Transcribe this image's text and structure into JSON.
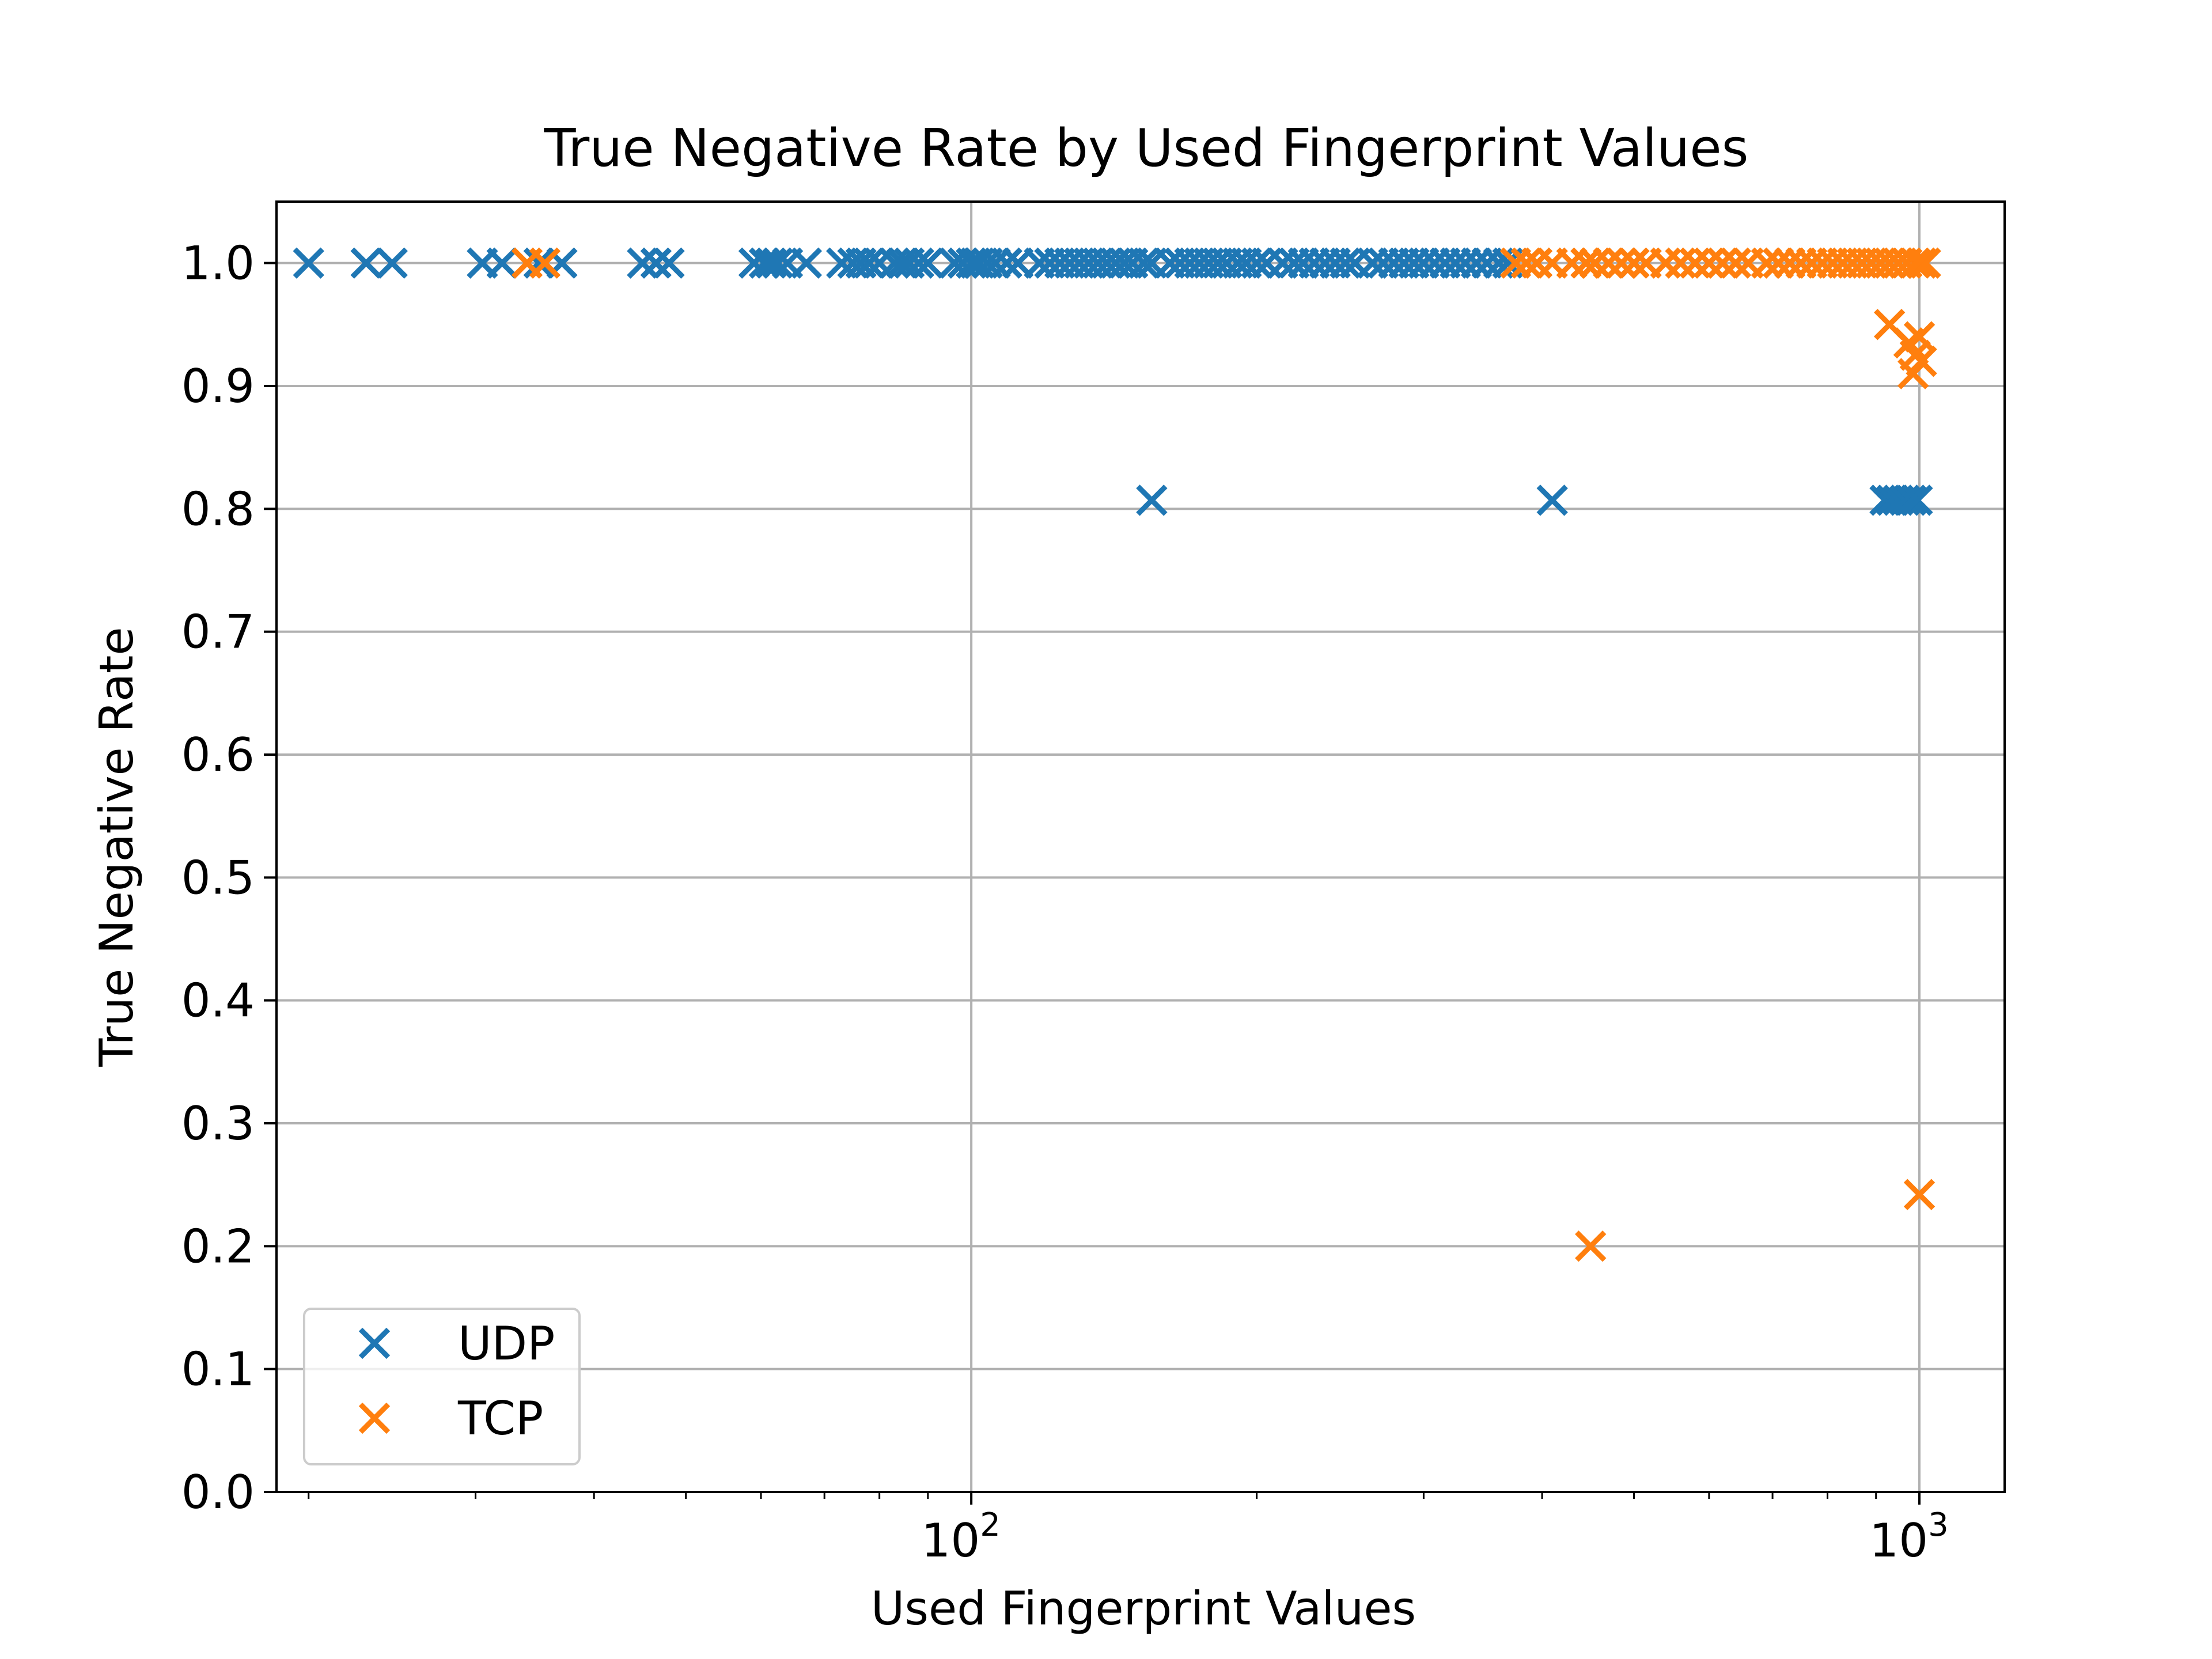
{
  "chart_data": {
    "type": "scatter",
    "title": "True Negative Rate by Used Fingerprint Values",
    "xlabel": "Used Fingerprint Values",
    "ylabel": "True Negative Rate",
    "xscale": "log",
    "xlim": [
      18.5,
      1230
    ],
    "ylim": [
      0.0,
      1.05
    ],
    "xticks_major": [
      {
        "value": 100,
        "base": "10",
        "exp": "2"
      },
      {
        "value": 1000,
        "base": "10",
        "exp": "3"
      }
    ],
    "yticks": [
      {
        "value": 0.0,
        "label": "0.0"
      },
      {
        "value": 0.1,
        "label": "0.1"
      },
      {
        "value": 0.2,
        "label": "0.2"
      },
      {
        "value": 0.3,
        "label": "0.3"
      },
      {
        "value": 0.4,
        "label": "0.4"
      },
      {
        "value": 0.5,
        "label": "0.5"
      },
      {
        "value": 0.6,
        "label": "0.6"
      },
      {
        "value": 0.7,
        "label": "0.7"
      },
      {
        "value": 0.8,
        "label": "0.8"
      },
      {
        "value": 0.9,
        "label": "0.9"
      },
      {
        "value": 1.0,
        "label": "1.0"
      }
    ],
    "grid": true,
    "marker": "x",
    "legend_position": "lower-left",
    "series": [
      {
        "name": "UDP",
        "color": "#1f77b4",
        "points": [
          [
            20,
            1.0
          ],
          [
            23,
            1.0
          ],
          [
            24.5,
            1.0
          ],
          [
            30.5,
            1.0
          ],
          [
            32,
            1.0
          ],
          [
            35,
            1.0
          ],
          [
            37,
            1.0
          ],
          [
            45,
            1.0
          ],
          [
            46.5,
            1.0
          ],
          [
            48,
            1.0
          ],
          [
            59,
            1.0
          ],
          [
            60.5,
            1.0
          ],
          [
            61.5,
            1.0
          ],
          [
            62.5,
            1.0
          ],
          [
            64,
            1.0
          ],
          [
            67,
            1.0
          ],
          [
            73,
            1.0
          ],
          [
            75,
            1.0
          ],
          [
            76.5,
            1.0
          ],
          [
            78,
            1.0
          ],
          [
            80,
            1.0
          ],
          [
            83,
            1.0
          ],
          [
            84.5,
            1.0
          ],
          [
            86,
            1.0
          ],
          [
            88,
            1.0
          ],
          [
            90,
            1.0
          ],
          [
            96,
            1.0
          ],
          [
            98,
            1.0
          ],
          [
            100,
            1.0
          ],
          [
            101,
            1.0
          ],
          [
            102,
            1.0
          ],
          [
            104,
            1.0
          ],
          [
            106,
            1.0
          ],
          [
            109,
            1.0
          ],
          [
            112,
            1.0
          ],
          [
            118,
            1.0
          ],
          [
            121,
            1.0
          ],
          [
            124,
            1.0
          ],
          [
            127,
            1.0
          ],
          [
            130,
            1.0
          ],
          [
            133,
            1.0
          ],
          [
            136,
            1.0
          ],
          [
            139,
            1.0
          ],
          [
            142,
            1.0
          ],
          [
            145,
            1.0
          ],
          [
            148,
            1.0
          ],
          [
            152,
            1.0
          ],
          [
            155,
            1.0
          ],
          [
            162,
            1.0
          ],
          [
            166,
            1.0
          ],
          [
            170,
            1.0
          ],
          [
            174,
            1.0
          ],
          [
            178,
            1.0
          ],
          [
            182,
            1.0
          ],
          [
            186,
            1.0
          ],
          [
            191,
            1.0
          ],
          [
            195,
            1.0
          ],
          [
            200,
            1.0
          ],
          [
            205,
            1.0
          ],
          [
            213,
            1.0
          ],
          [
            219,
            1.0
          ],
          [
            224,
            1.0
          ],
          [
            230,
            1.0
          ],
          [
            236,
            1.0
          ],
          [
            242,
            1.0
          ],
          [
            248,
            1.0
          ],
          [
            254,
            1.0
          ],
          [
            265,
            1.0
          ],
          [
            272,
            1.0
          ],
          [
            279,
            1.0
          ],
          [
            286,
            1.0
          ],
          [
            293,
            1.0
          ],
          [
            300,
            1.0
          ],
          [
            308,
            1.0
          ],
          [
            316,
            1.0
          ],
          [
            324,
            1.0
          ],
          [
            332,
            1.0
          ],
          [
            341,
            1.0
          ],
          [
            350,
            1.0
          ],
          [
            360,
            1.0
          ],
          [
            368,
            1.0
          ],
          [
            155,
            0.807
          ],
          [
            410,
            0.807
          ],
          [
            920,
            0.807
          ],
          [
            935,
            0.807
          ],
          [
            950,
            0.807
          ],
          [
            965,
            0.807
          ],
          [
            980,
            0.807
          ],
          [
            995,
            0.807
          ]
        ]
      },
      {
        "name": "TCP",
        "color": "#ff7f0e",
        "points": [
          [
            34,
            1.0
          ],
          [
            35.5,
            1.0
          ],
          [
            375,
            1.0
          ],
          [
            385,
            1.0
          ],
          [
            395,
            1.0
          ],
          [
            410,
            1.0
          ],
          [
            430,
            1.0
          ],
          [
            445,
            1.0
          ],
          [
            455,
            1.0
          ],
          [
            470,
            1.0
          ],
          [
            485,
            1.0
          ],
          [
            500,
            1.0
          ],
          [
            515,
            1.0
          ],
          [
            540,
            1.0
          ],
          [
            560,
            1.0
          ],
          [
            580,
            1.0
          ],
          [
            600,
            1.0
          ],
          [
            620,
            1.0
          ],
          [
            640,
            1.0
          ],
          [
            660,
            1.0
          ],
          [
            690,
            1.0
          ],
          [
            710,
            1.0
          ],
          [
            730,
            1.0
          ],
          [
            750,
            1.0
          ],
          [
            770,
            1.0
          ],
          [
            790,
            1.0
          ],
          [
            810,
            1.0
          ],
          [
            830,
            1.0
          ],
          [
            850,
            1.0
          ],
          [
            870,
            1.0
          ],
          [
            890,
            1.0
          ],
          [
            910,
            1.0
          ],
          [
            930,
            1.0
          ],
          [
            950,
            1.0
          ],
          [
            970,
            1.0
          ],
          [
            990,
            1.0
          ],
          [
            1005,
            1.0
          ],
          [
            1015,
            1.0
          ],
          [
            930,
            0.95
          ],
          [
            975,
            0.935
          ],
          [
            1000,
            0.94
          ],
          [
            990,
            0.925
          ],
          [
            1005,
            0.92
          ],
          [
            985,
            0.91
          ],
          [
            450,
            0.2
          ],
          [
            1000,
            0.242
          ]
        ]
      }
    ]
  }
}
